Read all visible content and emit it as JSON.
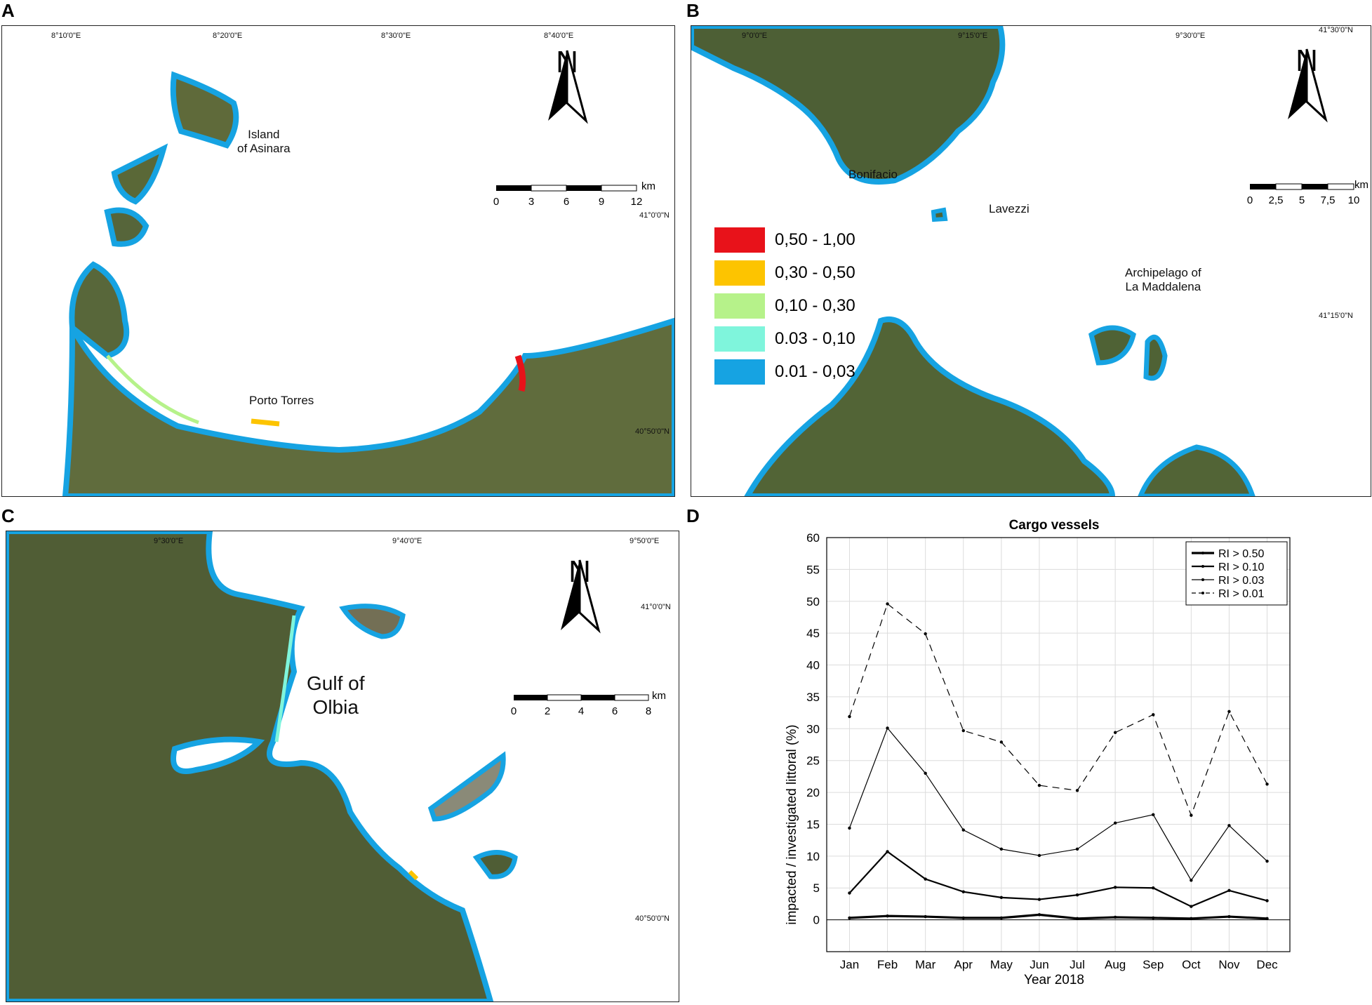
{
  "panels": {
    "a": {
      "letter": "A",
      "coords_top": [
        "8°10'0\"E",
        "8°20'0\"E",
        "8°30'0\"E",
        "8°40'0\"E"
      ],
      "coords_right": [
        "41°0'0\"N",
        "40°50'0\"N"
      ],
      "places": [
        "Island",
        "of Asinara",
        "Porto Torres"
      ],
      "north": "N",
      "scale": {
        "unit": "km",
        "ticks": [
          "0",
          "3",
          "6",
          "9",
          "12"
        ]
      }
    },
    "b": {
      "letter": "B",
      "coords_top": [
        "9°0'0\"E",
        "9°15'0\"E",
        "9°30'0\"E"
      ],
      "coords_right": [
        "41°30'0\"N",
        "41°15'0\"N"
      ],
      "places": [
        "Bonifacio",
        "Lavezzi",
        "Archipelago of",
        "La Maddalena"
      ],
      "north": "N",
      "scale": {
        "unit": "km",
        "ticks": [
          "0",
          "2,5",
          "5",
          "7,5",
          "10"
        ]
      }
    },
    "c": {
      "letter": "C",
      "coords_top": [
        "9°30'0\"E",
        "9°40'0\"E",
        "9°50'0\"E"
      ],
      "coords_right": [
        "41°0'0\"N",
        "40°50'0\"N"
      ],
      "places": [
        "Gulf of",
        "Olbia"
      ],
      "north": "N",
      "scale": {
        "unit": "km",
        "ticks": [
          "0",
          "2",
          "4",
          "6",
          "8"
        ]
      }
    },
    "d": {
      "letter": "D"
    }
  },
  "legend": [
    {
      "label": "0,50 - 1,00",
      "color": "#e8121a"
    },
    {
      "label": "0,30 - 0,50",
      "color": "#fdc400"
    },
    {
      "label": "0,10 - 0,30",
      "color": "#b6f28a"
    },
    {
      "label": "0.03 - 0,10",
      "color": "#7ff5dc"
    },
    {
      "label": "0.01 - 0,03",
      "color": "#16a3e2"
    }
  ],
  "colors": {
    "land": "#5d6a3c",
    "coast": "#16a3e2",
    "sea": "#ffffff"
  },
  "chart_data": {
    "type": "line",
    "title": "Cargo vessels",
    "xlabel": "Year 2018",
    "ylabel": "impacted / investigated littoral  (%)",
    "categories": [
      "Jan",
      "Feb",
      "Mar",
      "Apr",
      "May",
      "Jun",
      "Jul",
      "Aug",
      "Sep",
      "Oct",
      "Nov",
      "Dec"
    ],
    "ylim": [
      -5,
      60
    ],
    "yticks": [
      0,
      5,
      10,
      15,
      20,
      25,
      30,
      35,
      40,
      45,
      50,
      55,
      60
    ],
    "grid": true,
    "legend_position": "top-right",
    "series": [
      {
        "name": "RI > 0.50",
        "style": "thick",
        "values": [
          0.3,
          0.6,
          0.5,
          0.3,
          0.3,
          0.8,
          0.2,
          0.4,
          0.3,
          0.2,
          0.5,
          0.2
        ]
      },
      {
        "name": "RI > 0.10",
        "style": "medium",
        "values": [
          4.2,
          10.7,
          6.4,
          4.4,
          3.5,
          3.2,
          3.9,
          5.1,
          5.0,
          2.1,
          4.6,
          3.0
        ]
      },
      {
        "name": "RI > 0.03",
        "style": "thin",
        "values": [
          14.4,
          30.1,
          23.0,
          14.1,
          11.1,
          10.1,
          11.1,
          15.2,
          16.5,
          6.2,
          14.8,
          9.2
        ]
      },
      {
        "name": "RI > 0.01",
        "style": "dashed",
        "values": [
          31.9,
          49.6,
          44.9,
          29.7,
          27.9,
          21.1,
          20.3,
          29.4,
          32.2,
          16.4,
          32.7,
          21.3
        ]
      }
    ]
  }
}
